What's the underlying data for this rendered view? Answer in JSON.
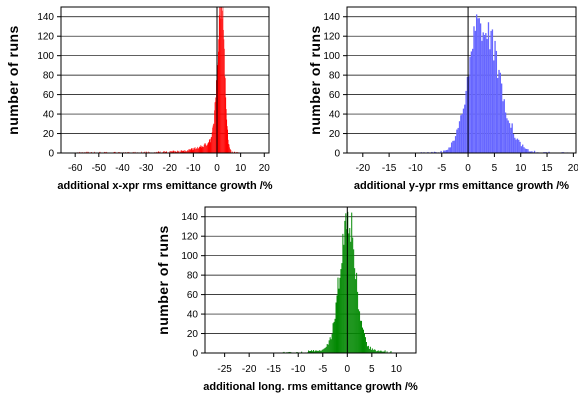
{
  "chart_data": [
    {
      "type": "bar",
      "id": "x",
      "color": "#ff0000",
      "xlabel": "additional  x-xpr  rms  emittance  growth  /%",
      "ylabel": "number  of  runs",
      "xlim": [
        -66,
        22
      ],
      "ylim": [
        0,
        150
      ],
      "xticks": [
        -60,
        -50,
        -40,
        -30,
        -20,
        -10,
        0,
        10,
        20
      ],
      "yticks": [
        0,
        20,
        40,
        60,
        80,
        100,
        120,
        140
      ],
      "grid_y": true,
      "vline_x": 0,
      "bin_width": 0.2,
      "shape": "left-skewed peak",
      "peak_x": 2,
      "peak_y": 143,
      "left_tail_from": -60,
      "right_tail_to": 12
    },
    {
      "type": "bar",
      "id": "y",
      "color": "#6666ff",
      "xlabel": "additional  y-ypr  rms  emittance  growth  /%",
      "ylabel": "number  of  runs",
      "xlim": [
        -23,
        20.5
      ],
      "ylim": [
        0,
        150
      ],
      "xticks": [
        -20,
        -15,
        -10,
        -5,
        0,
        5,
        10,
        15,
        20
      ],
      "yticks": [
        0,
        20,
        40,
        60,
        80,
        100,
        120,
        140
      ],
      "grid_y": true,
      "vline_x": 0,
      "bin_width": 0.25,
      "shape": "broad peak",
      "peak_x": 2.5,
      "peak_y": 148,
      "range": [
        -9,
        19
      ]
    },
    {
      "type": "bar",
      "id": "l",
      "color": "#008800",
      "xlabel": "additional  long.  rms  emittance  growth  /%",
      "ylabel": "number  of  runs",
      "xlim": [
        -29,
        14
      ],
      "ylim": [
        0,
        150
      ],
      "xticks": [
        -25,
        -20,
        -15,
        -10,
        -5,
        0,
        5,
        10
      ],
      "yticks": [
        0,
        20,
        40,
        60,
        80,
        100,
        120,
        140
      ],
      "grid_y": true,
      "vline_x": 0,
      "bin_width": 0.2,
      "shape": "symmetric peak",
      "peak_x": 0,
      "peak_y": 145,
      "range": [
        -14,
        9
      ]
    }
  ]
}
